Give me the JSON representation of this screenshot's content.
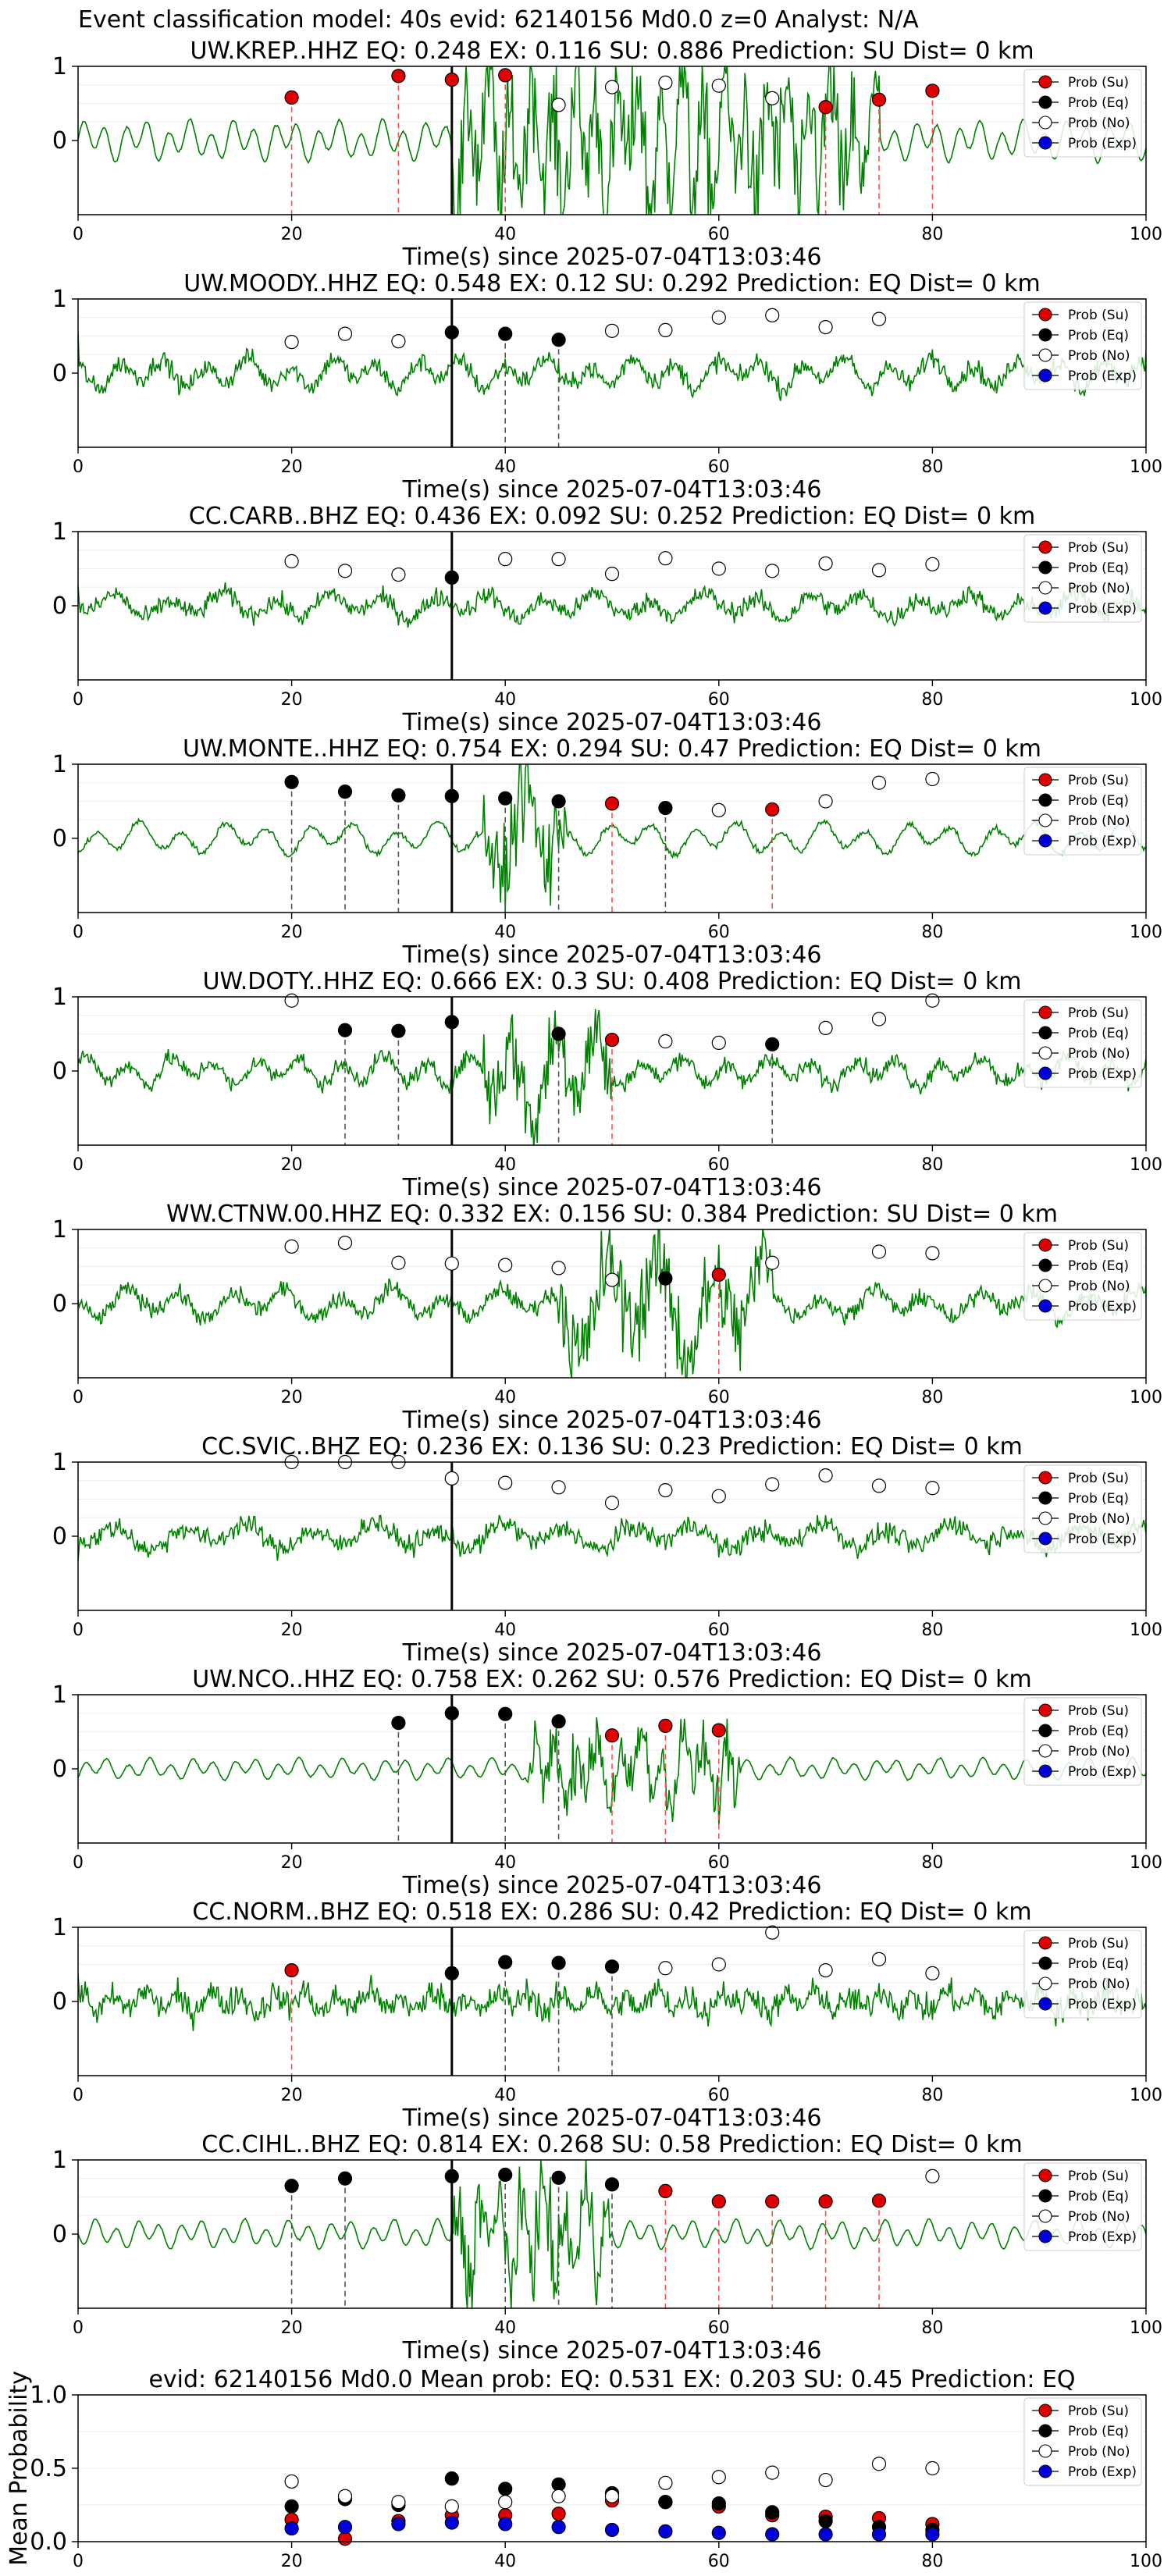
{
  "figure": {
    "title": "Event classification model: 40s evid: 62140156 Md0.0 z=0 Analyst: N/A"
  },
  "legend_labels": [
    "Prob (Su)",
    "Prob (Eq)",
    "Prob (No)",
    "Prob (Exp)"
  ],
  "colors": {
    "su": "#e00000",
    "eq": "#000000",
    "no": "#ffffff",
    "exp": "#0000dd",
    "trace": "#008000"
  },
  "chart_data": [
    {
      "type": "scatter",
      "title": "UW.KREP..HHZ   EQ: 0.248  EX: 0.116  SU: 0.886   Prediction: SU    Dist= 0 km",
      "xlabel": "Time(s) since 2025-07-04T13:03:46",
      "xlim": [
        0,
        100
      ],
      "ylim": [
        -1,
        1
      ],
      "xticks": [
        0,
        20,
        40,
        60,
        80,
        100
      ],
      "yticks": [
        0,
        1
      ],
      "pick_time": 35,
      "amp": 1.15,
      "noise": 0.06,
      "burst": [
        35,
        75
      ],
      "period": 2,
      "points": [
        {
          "x": 20,
          "y": 0.58,
          "cls": "su"
        },
        {
          "x": 30,
          "y": 0.87,
          "cls": "su"
        },
        {
          "x": 35,
          "y": 0.82,
          "cls": "su"
        },
        {
          "x": 40,
          "y": 0.88,
          "cls": "su"
        },
        {
          "x": 45,
          "y": 0.48,
          "cls": "no"
        },
        {
          "x": 50,
          "y": 0.72,
          "cls": "no"
        },
        {
          "x": 55,
          "y": 0.78,
          "cls": "no"
        },
        {
          "x": 60,
          "y": 0.74,
          "cls": "no"
        },
        {
          "x": 65,
          "y": 0.57,
          "cls": "no"
        },
        {
          "x": 70,
          "y": 0.45,
          "cls": "su"
        },
        {
          "x": 75,
          "y": 0.55,
          "cls": "su"
        },
        {
          "x": 80,
          "y": 0.67,
          "cls": "su"
        }
      ]
    },
    {
      "type": "scatter",
      "title": "UW.MOODY..HHZ   EQ: 0.548  EX: 0.12  SU: 0.292   Prediction: EQ    Dist= 0 km",
      "xlabel": "Time(s) since 2025-07-04T13:03:46",
      "xlim": [
        0,
        100
      ],
      "ylim": [
        -1,
        1
      ],
      "xticks": [
        0,
        20,
        40,
        60,
        80,
        100
      ],
      "yticks": [
        0,
        1
      ],
      "pick_time": 35,
      "amp": 0.85,
      "noise": 0.5,
      "burst": [
        0,
        0
      ],
      "period": 4,
      "points": [
        {
          "x": 20,
          "y": 0.42,
          "cls": "no"
        },
        {
          "x": 25,
          "y": 0.53,
          "cls": "no"
        },
        {
          "x": 30,
          "y": 0.43,
          "cls": "no"
        },
        {
          "x": 35,
          "y": 0.55,
          "cls": "eq"
        },
        {
          "x": 40,
          "y": 0.53,
          "cls": "eq"
        },
        {
          "x": 45,
          "y": 0.45,
          "cls": "eq"
        },
        {
          "x": 50,
          "y": 0.57,
          "cls": "no"
        },
        {
          "x": 55,
          "y": 0.58,
          "cls": "no"
        },
        {
          "x": 60,
          "y": 0.75,
          "cls": "no"
        },
        {
          "x": 65,
          "y": 0.78,
          "cls": "no"
        },
        {
          "x": 70,
          "y": 0.62,
          "cls": "no"
        },
        {
          "x": 75,
          "y": 0.73,
          "cls": "no"
        }
      ]
    },
    {
      "type": "scatter",
      "title": "CC.CARB..BHZ   EQ: 0.436  EX: 0.092  SU: 0.252   Prediction: EQ    Dist= 0 km",
      "xlabel": "Time(s) since 2025-07-04T13:03:46",
      "xlim": [
        0,
        100
      ],
      "ylim": [
        -1,
        1
      ],
      "xticks": [
        0,
        20,
        40,
        60,
        80,
        100
      ],
      "yticks": [
        0,
        1
      ],
      "pick_time": 35,
      "amp": 0.7,
      "noise": 0.5,
      "burst": [
        0,
        0
      ],
      "period": 5,
      "points": [
        {
          "x": 20,
          "y": 0.6,
          "cls": "no"
        },
        {
          "x": 25,
          "y": 0.47,
          "cls": "no"
        },
        {
          "x": 30,
          "y": 0.42,
          "cls": "no"
        },
        {
          "x": 35,
          "y": 0.38,
          "cls": "eq"
        },
        {
          "x": 40,
          "y": 0.63,
          "cls": "no"
        },
        {
          "x": 45,
          "y": 0.63,
          "cls": "no"
        },
        {
          "x": 50,
          "y": 0.43,
          "cls": "no"
        },
        {
          "x": 55,
          "y": 0.64,
          "cls": "no"
        },
        {
          "x": 60,
          "y": 0.5,
          "cls": "no"
        },
        {
          "x": 65,
          "y": 0.47,
          "cls": "no"
        },
        {
          "x": 70,
          "y": 0.57,
          "cls": "no"
        },
        {
          "x": 75,
          "y": 0.48,
          "cls": "no"
        },
        {
          "x": 80,
          "y": 0.56,
          "cls": "no"
        }
      ]
    },
    {
      "type": "scatter",
      "title": "UW.MONTE..HHZ   EQ: 0.754  EX: 0.294  SU: 0.47   Prediction: EQ    Dist= 0 km",
      "xlabel": "Time(s) since 2025-07-04T13:03:46",
      "xlim": [
        0,
        100
      ],
      "ylim": [
        -1,
        1
      ],
      "xticks": [
        0,
        20,
        40,
        60,
        80,
        100
      ],
      "yticks": [
        0,
        1
      ],
      "pick_time": 35,
      "amp": 0.9,
      "noise": 0.15,
      "burst": [
        38,
        46
      ],
      "period": 4,
      "points": [
        {
          "x": 20,
          "y": 0.76,
          "cls": "eq"
        },
        {
          "x": 25,
          "y": 0.63,
          "cls": "eq"
        },
        {
          "x": 30,
          "y": 0.58,
          "cls": "eq"
        },
        {
          "x": 35,
          "y": 0.57,
          "cls": "eq"
        },
        {
          "x": 40,
          "y": 0.54,
          "cls": "eq"
        },
        {
          "x": 45,
          "y": 0.5,
          "cls": "eq"
        },
        {
          "x": 50,
          "y": 0.47,
          "cls": "su"
        },
        {
          "x": 55,
          "y": 0.41,
          "cls": "eq"
        },
        {
          "x": 60,
          "y": 0.38,
          "cls": "no"
        },
        {
          "x": 65,
          "y": 0.39,
          "cls": "su"
        },
        {
          "x": 70,
          "y": 0.5,
          "cls": "no"
        },
        {
          "x": 75,
          "y": 0.75,
          "cls": "no"
        },
        {
          "x": 80,
          "y": 0.8,
          "cls": "no"
        }
      ]
    },
    {
      "type": "scatter",
      "title": "UW.DOTY..HHZ   EQ: 0.666  EX: 0.3  SU: 0.408   Prediction: EQ    Dist= 0 km",
      "xlabel": "Time(s) since 2025-07-04T13:03:46",
      "xlim": [
        0,
        100
      ],
      "ylim": [
        -1,
        1
      ],
      "xticks": [
        0,
        20,
        40,
        60,
        80,
        100
      ],
      "yticks": [
        0,
        1
      ],
      "pick_time": 35,
      "amp": 0.8,
      "noise": 0.45,
      "burst": [
        38,
        50
      ],
      "period": 4,
      "points": [
        {
          "x": 20,
          "y": 0.95,
          "cls": "no"
        },
        {
          "x": 25,
          "y": 0.55,
          "cls": "eq"
        },
        {
          "x": 30,
          "y": 0.54,
          "cls": "eq"
        },
        {
          "x": 35,
          "y": 0.66,
          "cls": "eq"
        },
        {
          "x": 45,
          "y": 0.5,
          "cls": "eq"
        },
        {
          "x": 50,
          "y": 0.42,
          "cls": "su"
        },
        {
          "x": 55,
          "y": 0.4,
          "cls": "no"
        },
        {
          "x": 60,
          "y": 0.38,
          "cls": "no"
        },
        {
          "x": 65,
          "y": 0.36,
          "cls": "eq"
        },
        {
          "x": 70,
          "y": 0.58,
          "cls": "no"
        },
        {
          "x": 75,
          "y": 0.7,
          "cls": "no"
        },
        {
          "x": 80,
          "y": 0.95,
          "cls": "no"
        }
      ]
    },
    {
      "type": "scatter",
      "title": "WW.CTNW.00.HHZ   EQ: 0.332  EX: 0.156  SU: 0.384   Prediction: SU    Dist= 0 km",
      "xlabel": "Time(s) since 2025-07-04T13:03:46",
      "xlim": [
        0,
        100
      ],
      "ylim": [
        -1,
        1
      ],
      "xticks": [
        0,
        20,
        40,
        60,
        80,
        100
      ],
      "yticks": [
        0,
        1
      ],
      "pick_time": 35,
      "amp": 0.85,
      "noise": 0.45,
      "burst": [
        45,
        65
      ],
      "period": 5,
      "points": [
        {
          "x": 20,
          "y": 0.77,
          "cls": "no"
        },
        {
          "x": 25,
          "y": 0.82,
          "cls": "no"
        },
        {
          "x": 30,
          "y": 0.55,
          "cls": "no"
        },
        {
          "x": 35,
          "y": 0.54,
          "cls": "no"
        },
        {
          "x": 40,
          "y": 0.52,
          "cls": "no"
        },
        {
          "x": 45,
          "y": 0.48,
          "cls": "no"
        },
        {
          "x": 50,
          "y": 0.32,
          "cls": "no"
        },
        {
          "x": 55,
          "y": 0.34,
          "cls": "eq"
        },
        {
          "x": 60,
          "y": 0.39,
          "cls": "su"
        },
        {
          "x": 65,
          "y": 0.55,
          "cls": "no"
        },
        {
          "x": 75,
          "y": 0.7,
          "cls": "no"
        },
        {
          "x": 80,
          "y": 0.68,
          "cls": "no"
        }
      ]
    },
    {
      "type": "scatter",
      "title": "CC.SVIC..BHZ   EQ: 0.236  EX: 0.136  SU: 0.23   Prediction: EQ    Dist= 0 km",
      "xlabel": "Time(s) since 2025-07-04T13:03:46",
      "xlim": [
        0,
        100
      ],
      "ylim": [
        -1,
        1
      ],
      "xticks": [
        0,
        20,
        40,
        60,
        80,
        100
      ],
      "yticks": [
        0,
        1
      ],
      "pick_time": 35,
      "amp": 0.75,
      "noise": 0.55,
      "burst": [
        0,
        0
      ],
      "period": 6,
      "points": [
        {
          "x": 20,
          "y": 1.0,
          "cls": "no"
        },
        {
          "x": 25,
          "y": 1.0,
          "cls": "no"
        },
        {
          "x": 30,
          "y": 1.0,
          "cls": "no"
        },
        {
          "x": 35,
          "y": 0.78,
          "cls": "no"
        },
        {
          "x": 40,
          "y": 0.72,
          "cls": "no"
        },
        {
          "x": 45,
          "y": 0.66,
          "cls": "no"
        },
        {
          "x": 50,
          "y": 0.45,
          "cls": "no"
        },
        {
          "x": 55,
          "y": 0.62,
          "cls": "no"
        },
        {
          "x": 60,
          "y": 0.54,
          "cls": "no"
        },
        {
          "x": 65,
          "y": 0.7,
          "cls": "no"
        },
        {
          "x": 70,
          "y": 0.82,
          "cls": "no"
        },
        {
          "x": 75,
          "y": 0.68,
          "cls": "no"
        },
        {
          "x": 80,
          "y": 0.65,
          "cls": "no"
        }
      ]
    },
    {
      "type": "scatter",
      "title": "UW.NCO..HHZ   EQ: 0.758  EX: 0.262  SU: 0.576   Prediction: EQ    Dist= 0 km",
      "xlabel": "Time(s) since 2025-07-04T13:03:46",
      "xlim": [
        0,
        100
      ],
      "ylim": [
        -1,
        1
      ],
      "xticks": [
        0,
        20,
        40,
        60,
        80,
        100
      ],
      "yticks": [
        0,
        1
      ],
      "pick_time": 35,
      "amp": 0.6,
      "noise": 0.04,
      "burst": [
        42,
        62
      ],
      "period": 2,
      "points": [
        {
          "x": 30,
          "y": 0.62,
          "cls": "eq"
        },
        {
          "x": 35,
          "y": 0.75,
          "cls": "eq"
        },
        {
          "x": 40,
          "y": 0.74,
          "cls": "eq"
        },
        {
          "x": 45,
          "y": 0.64,
          "cls": "eq"
        },
        {
          "x": 50,
          "y": 0.45,
          "cls": "su"
        },
        {
          "x": 55,
          "y": 0.58,
          "cls": "su"
        },
        {
          "x": 60,
          "y": 0.52,
          "cls": "su"
        }
      ]
    },
    {
      "type": "scatter",
      "title": "CC.NORM..BHZ   EQ: 0.518  EX: 0.286  SU: 0.42   Prediction: EQ    Dist= 0 km",
      "xlabel": "Time(s) since 2025-07-04T13:03:46",
      "xlim": [
        0,
        100
      ],
      "ylim": [
        -1,
        1
      ],
      "xticks": [
        0,
        20,
        40,
        60,
        80,
        100
      ],
      "yticks": [
        0,
        1
      ],
      "pick_time": 35,
      "amp": 0.6,
      "noise": 0.75,
      "burst": [
        0,
        0
      ],
      "period": 3,
      "points": [
        {
          "x": 20,
          "y": 0.42,
          "cls": "su"
        },
        {
          "x": 35,
          "y": 0.38,
          "cls": "eq"
        },
        {
          "x": 40,
          "y": 0.53,
          "cls": "eq"
        },
        {
          "x": 45,
          "y": 0.52,
          "cls": "eq"
        },
        {
          "x": 50,
          "y": 0.47,
          "cls": "eq"
        },
        {
          "x": 55,
          "y": 0.45,
          "cls": "no"
        },
        {
          "x": 60,
          "y": 0.5,
          "cls": "no"
        },
        {
          "x": 65,
          "y": 0.93,
          "cls": "no"
        },
        {
          "x": 70,
          "y": 0.42,
          "cls": "no"
        },
        {
          "x": 75,
          "y": 0.57,
          "cls": "no"
        },
        {
          "x": 80,
          "y": 0.38,
          "cls": "no"
        }
      ]
    },
    {
      "type": "scatter",
      "title": "CC.CIHL..BHZ   EQ: 0.814  EX: 0.268  SU: 0.58   Prediction: EQ    Dist= 0 km",
      "xlabel": "Time(s) since 2025-07-04T13:03:46",
      "xlim": [
        0,
        100
      ],
      "ylim": [
        -1,
        1
      ],
      "xticks": [
        0,
        20,
        40,
        60,
        80,
        100
      ],
      "yticks": [
        0,
        1
      ],
      "pick_time": 35,
      "amp": 0.8,
      "noise": 0.04,
      "burst": [
        35,
        50
      ],
      "period": 2,
      "points": [
        {
          "x": 20,
          "y": 0.65,
          "cls": "eq"
        },
        {
          "x": 25,
          "y": 0.75,
          "cls": "eq"
        },
        {
          "x": 35,
          "y": 0.78,
          "cls": "eq"
        },
        {
          "x": 40,
          "y": 0.8,
          "cls": "eq"
        },
        {
          "x": 45,
          "y": 0.76,
          "cls": "eq"
        },
        {
          "x": 50,
          "y": 0.67,
          "cls": "eq"
        },
        {
          "x": 55,
          "y": 0.58,
          "cls": "su"
        },
        {
          "x": 60,
          "y": 0.44,
          "cls": "su"
        },
        {
          "x": 65,
          "y": 0.44,
          "cls": "su"
        },
        {
          "x": 70,
          "y": 0.44,
          "cls": "su"
        },
        {
          "x": 75,
          "y": 0.45,
          "cls": "su"
        },
        {
          "x": 80,
          "y": 0.78,
          "cls": "no"
        }
      ]
    },
    {
      "type": "scatter",
      "title": "evid: 62140156  Md0.0   Mean prob:    EQ: 0.531  EX: 0.203  SU: 0.45   Prediction: EQ",
      "xlabel": "",
      "ylabel": "Mean Probability",
      "xlim": [
        0,
        100
      ],
      "ylim": [
        0,
        1
      ],
      "xticks": [
        0,
        20,
        40,
        60,
        80,
        100
      ],
      "yticks": [
        0.0,
        0.5,
        1.0
      ],
      "ytick_labels": [
        "0.0",
        "0.5",
        "1.0"
      ],
      "summary": true,
      "series": [
        {
          "name": "Prob (Su)",
          "cls": "su",
          "x": [
            20,
            25,
            30,
            35,
            40,
            45,
            50,
            55,
            60,
            65,
            70,
            75,
            80
          ],
          "y": [
            0.15,
            0.02,
            0.14,
            0.18,
            0.18,
            0.19,
            0.28,
            0.27,
            0.24,
            0.18,
            0.17,
            0.16,
            0.12
          ]
        },
        {
          "name": "Prob (Eq)",
          "cls": "eq",
          "x": [
            20,
            25,
            30,
            35,
            40,
            45,
            50,
            55,
            60,
            65,
            70,
            75,
            80
          ],
          "y": [
            0.24,
            0.29,
            0.25,
            0.43,
            0.36,
            0.39,
            0.33,
            0.27,
            0.26,
            0.2,
            0.14,
            0.1,
            0.08
          ]
        },
        {
          "name": "Prob (No)",
          "cls": "no",
          "x": [
            20,
            25,
            30,
            35,
            40,
            45,
            50,
            55,
            60,
            65,
            70,
            75,
            80
          ],
          "y": [
            0.41,
            0.31,
            0.27,
            0.24,
            0.27,
            0.31,
            0.31,
            0.4,
            0.44,
            0.47,
            0.42,
            0.53,
            0.5
          ]
        },
        {
          "name": "Prob (Exp)",
          "cls": "exp",
          "x": [
            20,
            25,
            30,
            35,
            40,
            45,
            50,
            55,
            60,
            65,
            70,
            75,
            80
          ],
          "y": [
            0.09,
            0.1,
            0.12,
            0.13,
            0.12,
            0.1,
            0.08,
            0.07,
            0.06,
            0.05,
            0.05,
            0.05,
            0.05
          ]
        }
      ]
    }
  ]
}
